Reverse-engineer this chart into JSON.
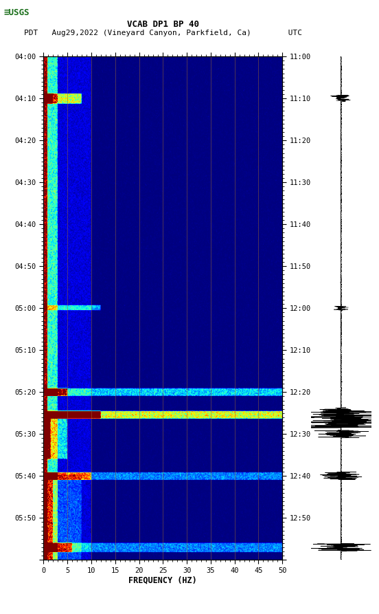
{
  "title_line1": "VCAB DP1 BP 40",
  "title_line2": "PDT   Aug29,2022 (Vineyard Canyon, Parkfield, Ca)        UTC",
  "xlabel": "FREQUENCY (HZ)",
  "ylabel_left": [
    "04:00",
    "04:10",
    "04:20",
    "04:30",
    "04:40",
    "04:50",
    "05:00",
    "05:10",
    "05:20",
    "05:30",
    "05:40",
    "05:50"
  ],
  "ylabel_right": [
    "11:00",
    "11:10",
    "11:20",
    "11:30",
    "11:40",
    "11:50",
    "12:00",
    "12:10",
    "12:20",
    "12:30",
    "12:40",
    "12:50"
  ],
  "xmin": 0,
  "xmax": 50,
  "xticks": [
    0,
    5,
    10,
    15,
    20,
    25,
    30,
    35,
    40,
    45,
    50
  ],
  "num_time_steps": 600,
  "num_freq_bins": 400,
  "vertical_lines_freq": [
    5,
    10,
    15,
    20,
    25,
    30,
    35,
    40,
    45
  ],
  "bg_color": "white",
  "spectrogram_bg": "#00008B",
  "colormap": "jet",
  "vline_color": "#996633",
  "vline_alpha": 0.7,
  "vline_lw": 0.5,
  "logo_color": "#1a6e1a",
  "title_fontsize": 9,
  "subtitle_fontsize": 8,
  "tick_fontsize": 7.5
}
